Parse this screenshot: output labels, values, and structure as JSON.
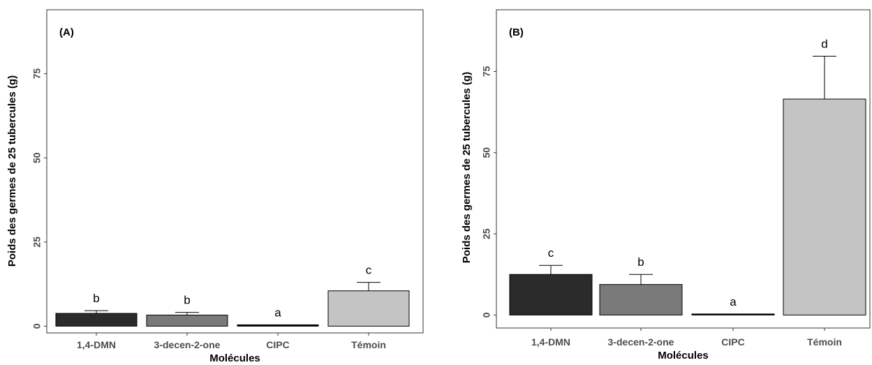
{
  "chart_data": [
    {
      "type": "bar",
      "panel_label": "(A)",
      "xlabel": "Molécules",
      "ylabel": "Poids des germes de 25 tubercules (g)",
      "ylim": [
        -2,
        94
      ],
      "yticks": [
        0,
        25,
        50,
        75
      ],
      "grid": false,
      "categories": [
        "1,4-DMN",
        "3-decen-2-one",
        "CIPC",
        "Témoin"
      ],
      "values": [
        3.8,
        3.3,
        0.4,
        10.5
      ],
      "errors": [
        0.8,
        0.8,
        0,
        2.5
      ],
      "letters": [
        "b",
        "b",
        "a",
        "c"
      ],
      "colors": [
        "#2b2b2b",
        "#7a7a7a",
        "#000000",
        "#c4c4c4"
      ]
    },
    {
      "type": "bar",
      "panel_label": "(B)",
      "xlabel": "Molécules",
      "ylabel": "Poids des germes de 25 tubercules (g)",
      "ylim": [
        -4,
        94
      ],
      "yticks": [
        0,
        25,
        50,
        75
      ],
      "grid": false,
      "categories": [
        "1,4-DMN",
        "3-decen-2-one",
        "CIPC",
        "Témoin"
      ],
      "values": [
        12.5,
        9.4,
        0.3,
        66.5
      ],
      "errors": [
        2.8,
        3.1,
        0,
        13.2
      ],
      "letters": [
        "c",
        "b",
        "a",
        "d"
      ],
      "colors": [
        "#2b2b2b",
        "#7a7a7a",
        "#000000",
        "#c4c4c4"
      ]
    }
  ]
}
